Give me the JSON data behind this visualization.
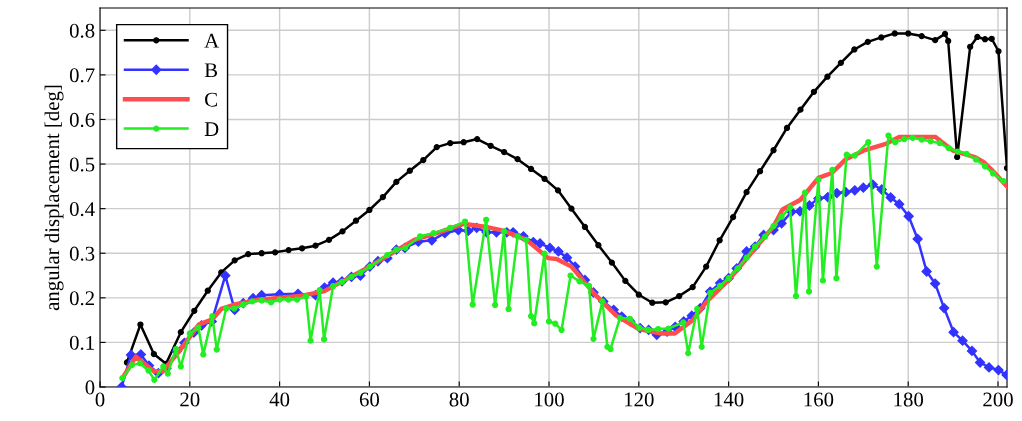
{
  "chart_data": {
    "type": "line",
    "ylabel": "angular displacement [deg]",
    "xlim": [
      0,
      202
    ],
    "ylim": [
      0,
      0.85
    ],
    "xticks": [
      0,
      20,
      40,
      60,
      80,
      100,
      120,
      140,
      160,
      180,
      200
    ],
    "yticks": [
      0,
      0.1,
      0.2,
      0.3,
      0.4,
      0.5,
      0.6,
      0.7,
      0.8
    ],
    "grid": true,
    "legend": "top left",
    "line_style": "solid",
    "series": [
      {
        "name": "A",
        "color": "#000000",
        "marker": "circle",
        "x": [
          6,
          9,
          12,
          14.7,
          18,
          21,
          24,
          27,
          30,
          33,
          36,
          39,
          42,
          45,
          48,
          51,
          54,
          57,
          60,
          63,
          66,
          69,
          72,
          75,
          78,
          81,
          84,
          87,
          90,
          93,
          96,
          99,
          102,
          105,
          108,
          111,
          114,
          117,
          120,
          123,
          126,
          129,
          132,
          135,
          138,
          141,
          144,
          147,
          150,
          153,
          156,
          159,
          162,
          165,
          168,
          171,
          174,
          177,
          180,
          183,
          186,
          188.2,
          188.9,
          190.9,
          193.8,
          195.4,
          197.1,
          198.6,
          200.1,
          202
        ],
        "values": [
          0.055,
          0.14,
          0.074,
          0.052,
          0.123,
          0.171,
          0.216,
          0.257,
          0.284,
          0.298,
          0.3,
          0.302,
          0.307,
          0.311,
          0.317,
          0.33,
          0.349,
          0.373,
          0.397,
          0.426,
          0.46,
          0.485,
          0.509,
          0.538,
          0.547,
          0.549,
          0.556,
          0.541,
          0.527,
          0.511,
          0.489,
          0.467,
          0.441,
          0.4,
          0.359,
          0.318,
          0.279,
          0.238,
          0.207,
          0.189,
          0.19,
          0.204,
          0.224,
          0.27,
          0.329,
          0.381,
          0.437,
          0.484,
          0.531,
          0.581,
          0.622,
          0.662,
          0.696,
          0.727,
          0.757,
          0.774,
          0.784,
          0.793,
          0.793,
          0.787,
          0.778,
          0.792,
          0.776,
          0.516,
          0.763,
          0.785,
          0.78,
          0.781,
          0.753,
          0.491
        ]
      },
      {
        "name": "B",
        "color": "#3333ff",
        "marker": "diamond",
        "x": [
          4.8,
          6.9,
          9.1,
          10.9,
          13,
          14.8,
          17.1,
          18.8,
          20.9,
          22.6,
          24.9,
          27.9,
          30,
          31.9,
          34.1,
          36,
          40,
          44.1,
          48,
          50,
          51.9,
          53.9,
          56,
          58,
          60.1,
          61.9,
          64,
          66,
          67.9,
          70.9,
          73.9,
          76.8,
          79.8,
          82,
          83.9,
          86.1,
          88.3,
          90.6,
          92,
          94.3,
          96.5,
          98,
          100.2,
          102.1,
          104,
          105.8,
          108,
          109.9,
          112.1,
          114.4,
          116.2,
          118.1,
          120.3,
          122.2,
          124,
          126.3,
          128.1,
          130,
          131.8,
          133.7,
          135.9,
          138.1,
          140,
          141.8,
          144,
          145.9,
          147.8,
          150,
          151.8,
          154,
          155.9,
          158,
          160,
          162.1,
          164.1,
          166.1,
          168.1,
          170,
          172.1,
          174.1,
          176.1,
          178,
          180.1,
          182.1,
          184.1,
          186,
          188,
          190.1,
          192.1,
          194.2,
          196,
          198,
          200.1,
          201.9
        ],
        "values": [
          0,
          0.072,
          0.073,
          0.048,
          0.031,
          0.042,
          0.08,
          0.099,
          0.122,
          0.138,
          0.147,
          0.25,
          0.173,
          0.188,
          0.199,
          0.206,
          0.208,
          0.209,
          0.206,
          0.223,
          0.234,
          0.237,
          0.247,
          0.25,
          0.27,
          0.282,
          0.289,
          0.308,
          0.312,
          0.326,
          0.329,
          0.345,
          0.352,
          0.35,
          0.357,
          0.347,
          0.347,
          0.347,
          0.347,
          0.338,
          0.325,
          0.322,
          0.312,
          0.304,
          0.29,
          0.27,
          0.24,
          0.212,
          0.192,
          0.173,
          0.158,
          0.147,
          0.132,
          0.128,
          0.117,
          0.124,
          0.135,
          0.147,
          0.16,
          0.177,
          0.214,
          0.233,
          0.244,
          0.266,
          0.304,
          0.315,
          0.341,
          0.352,
          0.367,
          0.393,
          0.394,
          0.407,
          0.423,
          0.426,
          0.435,
          0.437,
          0.441,
          0.447,
          0.454,
          0.443,
          0.425,
          0.41,
          0.383,
          0.332,
          0.259,
          0.232,
          0.177,
          0.123,
          0.104,
          0.081,
          0.055,
          0.044,
          0.038,
          0.027
        ]
      },
      {
        "name": "C",
        "color": "#ff4d4d",
        "marker": "none",
        "x": [
          5,
          8,
          12,
          14,
          18,
          22,
          25,
          27,
          30,
          35,
          45,
          50,
          60,
          70,
          75,
          81,
          86,
          90,
          95,
          99.8,
          101.7,
          105,
          110,
          115,
          120,
          125,
          128,
          132,
          135,
          140,
          145,
          150,
          152,
          156,
          160,
          163,
          166,
          170,
          175,
          178,
          182,
          186,
          190,
          195,
          197,
          199,
          202
        ],
        "values": [
          0.02,
          0.068,
          0.035,
          0.035,
          0.085,
          0.14,
          0.152,
          0.175,
          0.185,
          0.195,
          0.205,
          0.215,
          0.27,
          0.33,
          0.345,
          0.366,
          0.359,
          0.35,
          0.33,
          0.289,
          0.287,
          0.27,
          0.21,
          0.16,
          0.13,
          0.12,
          0.12,
          0.15,
          0.19,
          0.24,
          0.3,
          0.36,
          0.398,
          0.42,
          0.469,
          0.48,
          0.51,
          0.53,
          0.545,
          0.561,
          0.561,
          0.561,
          0.53,
          0.515,
          0.503,
          0.483,
          0.45
        ]
      },
      {
        "name": "D",
        "color": "#22ee22",
        "marker": "circle",
        "x": [
          5,
          7.1,
          8.9,
          10.8,
          12.1,
          14.1,
          15.1,
          16.9,
          18,
          20,
          21.9,
          23,
          25,
          26,
          28.1,
          29.9,
          31.9,
          33.9,
          36,
          38.1,
          40,
          42,
          43.9,
          45.9,
          46.9,
          48.9,
          49.9,
          51.9,
          53.9,
          56,
          58,
          60.1,
          64,
          66,
          68,
          71.3,
          74.3,
          78,
          81.3,
          83,
          86,
          88,
          90,
          91,
          93,
          94.9,
          96,
          96.7,
          99,
          100,
          101.4,
          102.8,
          104.8,
          106.8,
          108.9,
          109.9,
          111.9,
          113,
          113.7,
          115.8,
          118,
          120.1,
          122.1,
          124.3,
          126.6,
          129.9,
          131,
          133,
          134,
          135.9,
          138.1,
          140,
          142,
          144,
          145.9,
          148.1,
          150,
          151.8,
          153.7,
          155,
          157,
          157.9,
          160,
          161,
          163.1,
          164,
          166.3,
          168.1,
          171.1,
          173,
          175.6,
          177.1,
          179.1,
          181,
          183,
          185,
          187,
          189,
          191,
          193,
          195.1,
          197.1,
          198.9,
          201.2
        ],
        "values": [
          0.02,
          0.049,
          0.053,
          0.037,
          0.016,
          0.046,
          0.03,
          0.085,
          0.046,
          0.12,
          0.133,
          0.073,
          0.159,
          0.084,
          0.176,
          0.176,
          0.185,
          0.192,
          0.194,
          0.19,
          0.196,
          0.196,
          0.196,
          0.203,
          0.104,
          0.217,
          0.107,
          0.226,
          0.236,
          0.247,
          0.256,
          0.27,
          0.296,
          0.308,
          0.312,
          0.338,
          0.345,
          0.357,
          0.371,
          0.185,
          0.375,
          0.184,
          0.349,
          0.175,
          0.338,
          0.33,
          0.159,
          0.143,
          0.299,
          0.147,
          0.142,
          0.128,
          0.25,
          0.237,
          0.227,
          0.108,
          0.192,
          0.09,
          0.085,
          0.155,
          0.153,
          0.133,
          0.128,
          0.13,
          0.131,
          0.145,
          0.076,
          0.175,
          0.09,
          0.211,
          0.227,
          0.244,
          0.266,
          0.29,
          0.315,
          0.337,
          0.361,
          0.382,
          0.403,
          0.204,
          0.436,
          0.214,
          0.465,
          0.239,
          0.487,
          0.244,
          0.521,
          0.519,
          0.549,
          0.27,
          0.564,
          0.549,
          0.556,
          0.559,
          0.555,
          0.551,
          0.547,
          0.536,
          0.528,
          0.523,
          0.51,
          0.495,
          0.479,
          0.462
        ]
      }
    ]
  }
}
